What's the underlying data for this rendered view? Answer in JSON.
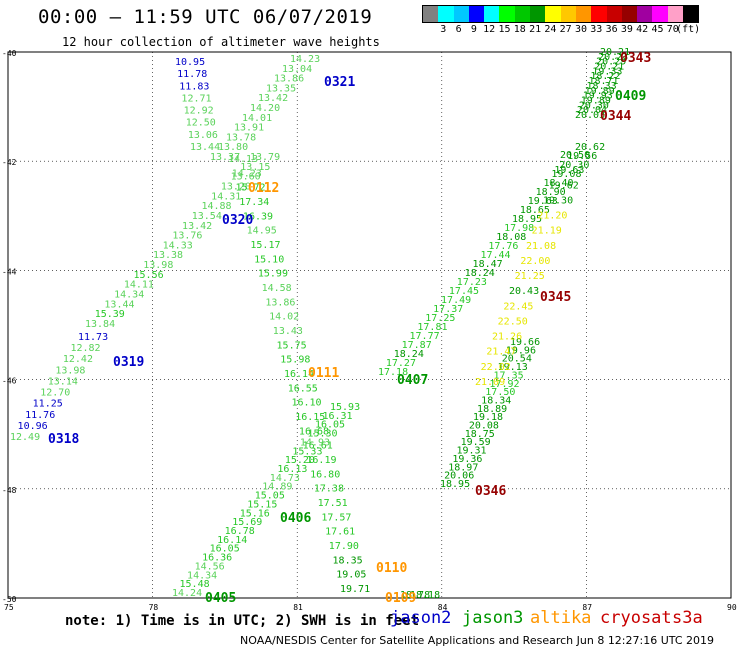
{
  "header": {
    "title": "00:00 – 11:59 UTC 06/07/2019",
    "subtitle": "12 hour collection of altimeter wave heights"
  },
  "colorbar": {
    "colors": [
      "#808080",
      "#00ffff",
      "#00c8ff",
      "#0000ff",
      "#00ffff",
      "#00ff00",
      "#00c800",
      "#009600",
      "#ffff00",
      "#ffc800",
      "#ff9600",
      "#ff0000",
      "#c80000",
      "#960000",
      "#a000a0",
      "#ff00ff",
      "#ffa0c8",
      "#000000"
    ],
    "labels": [
      "3",
      "6",
      "9",
      "12",
      "15",
      "18",
      "21",
      "24",
      "27",
      "30",
      "33",
      "36",
      "39",
      "42",
      "45",
      "70",
      "(ft)"
    ]
  },
  "axes": {
    "lat_labels": [
      "-40",
      "-42",
      "-44",
      "-46",
      "-48",
      "-50"
    ],
    "lon_labels": [
      "75",
      "78",
      "81",
      "84",
      "87",
      "90"
    ]
  },
  "tracks": [
    {
      "id": "0318",
      "label_color": "#0000c8",
      "values": [
        "12.49",
        "10.96",
        "11.76",
        "11.25",
        "12.70",
        "13.14",
        "13.98",
        "12.42",
        "12.82",
        "11.73"
      ]
    },
    {
      "id": "0319",
      "label_color": "#0000c8",
      "values": [
        "13.84",
        "15.39",
        "13.44",
        "14.34",
        "14.11",
        "15.56",
        "13.98",
        "13.38",
        "14.33",
        "13.76",
        "13.42",
        "13.54",
        "14.88",
        "14.31",
        "13.20",
        "13.60",
        "13.15",
        "13.79"
      ]
    },
    {
      "id": "0320",
      "label_color": "#0000c8",
      "values": [
        "13.44",
        "13.06",
        "12.50",
        "12.92",
        "12.71",
        "11.83",
        "11.78",
        "10.95"
      ]
    },
    {
      "id": "0321",
      "label_color": "#0000c8",
      "values": [
        "13.37",
        "13.80",
        "13.78",
        "13.91",
        "14.01",
        "14.20",
        "13.42",
        "13.35",
        "13.86",
        "13.04",
        "14.23"
      ]
    },
    {
      "id": "0112",
      "label_color": "#ff9600",
      "values": [
        "14.13",
        "14.23",
        "15.72",
        "17.34",
        "16.39",
        "14.95",
        "15.17",
        "15.10",
        "15.99",
        "14.58",
        "13.86",
        "14.02",
        "13.43",
        "15.75",
        "15.98",
        "16.14",
        "16.55",
        "16.10",
        "16.15",
        "16.68",
        "16.61",
        "16.19",
        "16.80",
        "17.38",
        "17.51",
        "17.57",
        "17.61",
        "17.90",
        "18.35",
        "19.05",
        "19.71"
      ]
    },
    {
      "id": "0405",
      "label_color": "#009600",
      "values": [
        "14.24",
        "15.48",
        "14.34",
        "14.56",
        "16.36",
        "16.05",
        "16.14",
        "16.78",
        "15.69",
        "15.16",
        "15.15",
        "15.05",
        "14.89",
        "14.73",
        "16.13",
        "15.20",
        "15.33",
        "14.93",
        "15.30",
        "16.05",
        "16.31",
        "15.93"
      ]
    },
    {
      "id": "0407",
      "label_color": "#009600",
      "values": [
        "17.18",
        "17.27",
        "18.24",
        "17.87",
        "17.77",
        "17.81",
        "17.25",
        "17.37",
        "17.49",
        "17.45",
        "17.23",
        "18.24",
        "18.47",
        "17.44",
        "17.76",
        "18.08",
        "17.98",
        "18.95",
        "18.65",
        "19.63",
        "18.90",
        "18.40",
        "19.08",
        "20.30",
        "19.56",
        "20.62"
      ]
    },
    {
      "id": "0409",
      "label_color": "#009600",
      "values": [
        "20.03",
        "20.04",
        "20.30",
        "19.89",
        "19.93",
        "19.89",
        "18.33",
        "18.71",
        "18.22",
        "19.33",
        "20.21",
        "20.29",
        "20.23",
        "20.21"
      ]
    },
    {
      "id": "0346",
      "label_color": "#960000",
      "values": [
        "18.95",
        "20.06",
        "18.97",
        "19.36",
        "19.31",
        "19.59",
        "18.75",
        "20.08",
        "19.18",
        "18.89",
        "18.34",
        "17.50",
        "17.92",
        "17.35",
        "19.13",
        "20.54",
        "19.96",
        "19.66"
      ]
    },
    {
      "id": "0345",
      "label_color": "#960000",
      "values": [
        "21.09",
        "22.02",
        "21.47",
        "21.26",
        "22.50",
        "22.45",
        "20.43",
        "21.25",
        "22.00",
        "21.08",
        "21.19",
        "21.20",
        "19.30",
        "19.62",
        "19.63",
        "20.50"
      ]
    },
    {
      "id": "0110",
      "label_color": "#ff9600",
      "values": [
        "18.78",
        "18.18"
      ]
    }
  ],
  "track_labels": [
    "0318",
    "0319",
    "0320",
    "0321",
    "0112",
    "0111",
    "0405",
    "0406",
    "0407",
    "0409",
    "0344",
    "0343",
    "0345",
    "0346",
    "0110",
    "0109"
  ],
  "footer": {
    "note": "note: 1) Time is in UTC; 2) SWH is in feet",
    "legend": [
      {
        "name": "jason2",
        "color": "#0000c8"
      },
      {
        "name": "jason3",
        "color": "#009600"
      },
      {
        "name": "altika",
        "color": "#ff9600"
      },
      {
        "name": "cryosat",
        "color": "#c80000"
      },
      {
        "name": "s3a",
        "color": "#c80000"
      }
    ],
    "credit": "NOAA/NESDIS Center for Satellite Applications and Research    Jun  8 12:27:16 UTC 2019"
  }
}
